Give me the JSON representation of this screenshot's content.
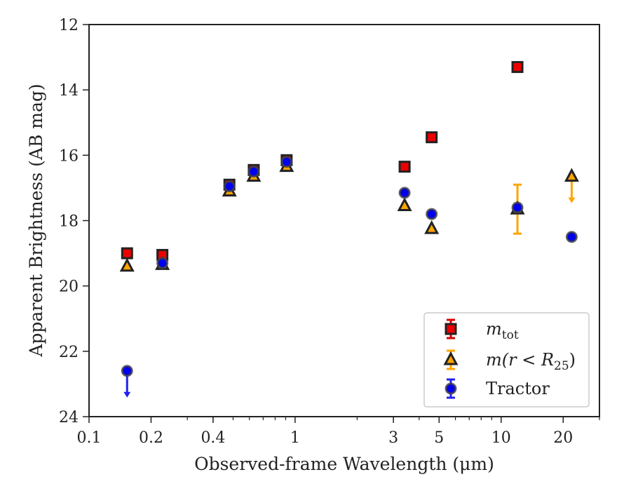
{
  "chart_data": {
    "type": "scatter",
    "xlabel": "Observed-frame Wavelength (μm)",
    "ylabel": "Apparent Brightness (AB mag)",
    "xscale": "log",
    "xlim": [
      0.1,
      30
    ],
    "ylim": [
      24,
      12
    ],
    "y_inverted": true,
    "x_ticks": [
      0.1,
      0.2,
      0.4,
      1,
      3,
      5,
      10,
      20
    ],
    "x_tick_labels": [
      "0.1",
      "0.2",
      "0.4",
      "1",
      "3",
      "5",
      "10",
      "20"
    ],
    "y_ticks": [
      12,
      14,
      16,
      18,
      20,
      22,
      24
    ],
    "y_tick_labels": [
      "12",
      "14",
      "16",
      "18",
      "20",
      "22",
      "24"
    ],
    "grid": false,
    "legend_position": "bottom-right",
    "series": [
      {
        "key": "mtot",
        "name": "m_tot",
        "marker": "square",
        "face_color": "#ee0000",
        "edge_color": "#222222",
        "err_color": "#dd0000",
        "points": [
          {
            "x": 0.153,
            "y": 19.0
          },
          {
            "x": 0.227,
            "y": 19.05
          },
          {
            "x": 0.48,
            "y": 16.9
          },
          {
            "x": 0.63,
            "y": 16.45
          },
          {
            "x": 0.91,
            "y": 16.15
          },
          {
            "x": 3.4,
            "y": 16.35
          },
          {
            "x": 4.6,
            "y": 15.45
          },
          {
            "x": 12.0,
            "y": 13.3
          }
        ]
      },
      {
        "key": "mr25",
        "name": "m(r < R_25)",
        "marker": "triangle",
        "face_color": "#ffa500",
        "edge_color": "#222222",
        "err_color": "#ffa500",
        "points": [
          {
            "x": 0.153,
            "y": 19.4
          },
          {
            "x": 0.227,
            "y": 19.35
          },
          {
            "x": 0.48,
            "y": 17.1
          },
          {
            "x": 0.63,
            "y": 16.65
          },
          {
            "x": 0.91,
            "y": 16.35
          },
          {
            "x": 3.4,
            "y": 17.55
          },
          {
            "x": 4.6,
            "y": 18.25
          },
          {
            "x": 12.0,
            "y": 17.65,
            "yerr_low": 16.9,
            "yerr_high": 18.4
          },
          {
            "x": 22.0,
            "y": 16.65,
            "upper_limit": true
          }
        ]
      },
      {
        "key": "tractor",
        "name": "Tractor",
        "marker": "circle",
        "face_color": "#0000ee",
        "edge_color": "#444444",
        "err_color": "#2222ee",
        "points": [
          {
            "x": 0.153,
            "y": 22.6,
            "upper_limit": true
          },
          {
            "x": 0.227,
            "y": 19.3
          },
          {
            "x": 0.48,
            "y": 16.95
          },
          {
            "x": 0.63,
            "y": 16.5
          },
          {
            "x": 0.91,
            "y": 16.2
          },
          {
            "x": 3.4,
            "y": 17.15
          },
          {
            "x": 4.6,
            "y": 17.8
          },
          {
            "x": 12.0,
            "y": 17.6
          },
          {
            "x": 22.0,
            "y": 18.5
          }
        ]
      }
    ],
    "legend": {
      "entries": [
        {
          "series": "mtot",
          "base": "m",
          "sub": "tot"
        },
        {
          "series": "mr25",
          "base": "m(r < R",
          "sub": "25",
          "suffix": ")"
        },
        {
          "series": "tractor",
          "label": "Tractor"
        }
      ]
    }
  }
}
